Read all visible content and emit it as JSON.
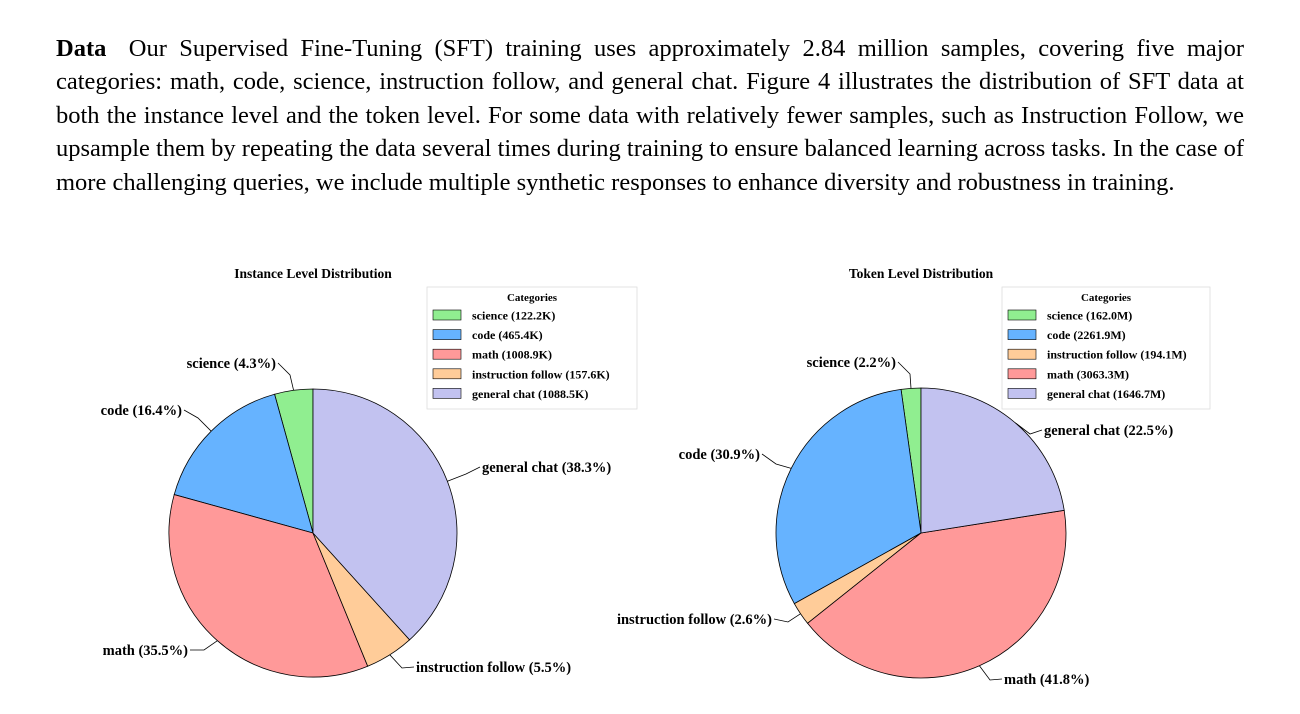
{
  "paragraph": {
    "lead": "Data",
    "text": "Our Supervised Fine-Tuning (SFT) training uses approximately 2.84 million samples, covering five major categories: math, code, science, instruction follow, and general chat. Figure 4 illustrates the distribution of SFT data at both the instance level and the token level. For some data with relatively fewer samples, such as Instruction Follow, we upsample them by repeating the data several times during training to ensure balanced learning across tasks. In the case of more challenging queries, we include multiple synthetic responses to enhance diversity and robustness in training."
  },
  "chart_data": [
    {
      "type": "pie",
      "title": "Instance Level Distribution",
      "legend_title": "Categories",
      "legend_position": "top-right",
      "slices": [
        {
          "name": "science",
          "percent": 4.3,
          "legend": "science (122.2K)",
          "label": "science (4.3%)",
          "color": "#90ee90"
        },
        {
          "name": "code",
          "percent": 16.4,
          "legend": "code (465.4K)",
          "label": "code (16.4%)",
          "color": "#66b3ff"
        },
        {
          "name": "math",
          "percent": 35.5,
          "legend": "math (1008.9K)",
          "label": "math (35.5%)",
          "color": "#ff9999"
        },
        {
          "name": "instruction follow",
          "percent": 5.5,
          "legend": "instruction follow (157.6K)",
          "label": "instruction follow (5.5%)",
          "color": "#ffcc99"
        },
        {
          "name": "general chat",
          "percent": 38.3,
          "legend": "general chat (1088.5K)",
          "label": "general chat (38.3%)",
          "color": "#c2c2f0"
        }
      ]
    },
    {
      "type": "pie",
      "title": "Token Level Distribution",
      "legend_title": "Categories",
      "legend_position": "top-right",
      "slices": [
        {
          "name": "science",
          "percent": 2.2,
          "legend": "science (162.0M)",
          "label": "science (2.2%)",
          "color": "#90ee90"
        },
        {
          "name": "code",
          "percent": 30.9,
          "legend": "code (2261.9M)",
          "label": "code (30.9%)",
          "color": "#66b3ff"
        },
        {
          "name": "instruction follow",
          "percent": 2.6,
          "legend": "instruction follow (194.1M)",
          "label": "instruction follow (2.6%)",
          "color": "#ffcc99"
        },
        {
          "name": "math",
          "percent": 41.8,
          "legend": "math (3063.3M)",
          "label": "math (41.8%)",
          "color": "#ff9999"
        },
        {
          "name": "general chat",
          "percent": 22.5,
          "legend": "general chat (1646.7M)",
          "label": "general chat (22.5%)",
          "color": "#c2c2f0"
        }
      ]
    }
  ]
}
